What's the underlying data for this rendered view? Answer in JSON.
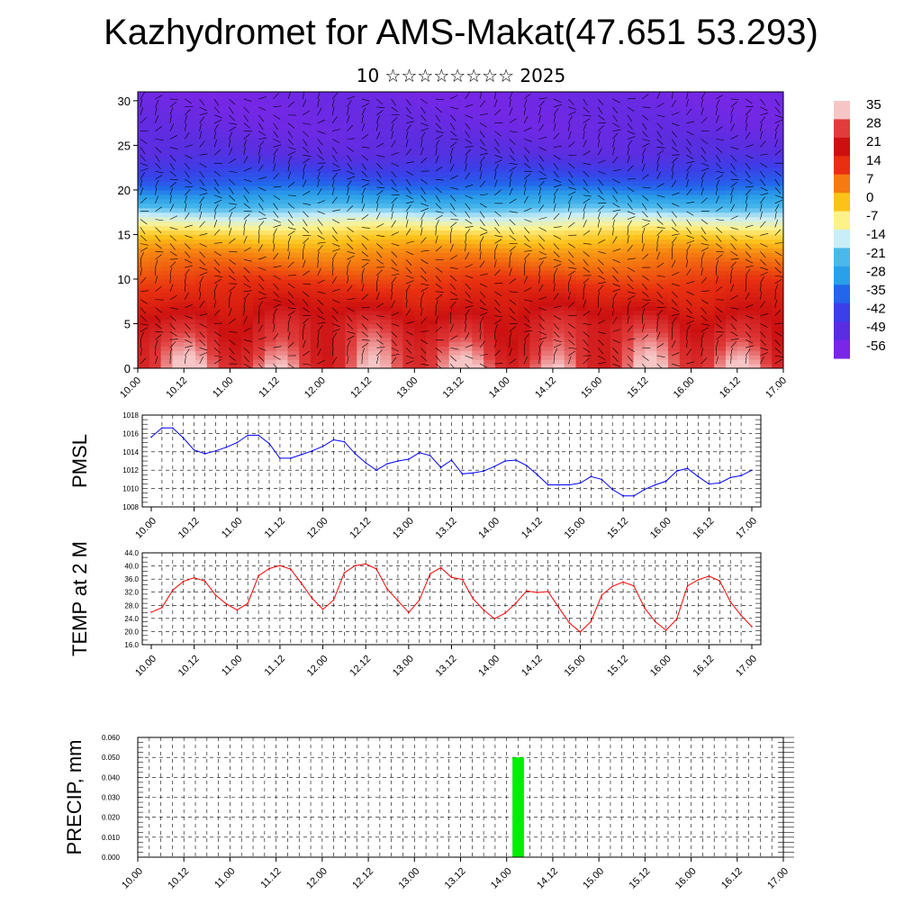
{
  "title": "Kazhydromet for AMS-Makat(47.651 53.293)",
  "subtitle": "10 ☆☆☆☆☆☆☆☆ 2025",
  "time_labels": [
    "10.00",
    "10.12",
    "11.00",
    "11.12",
    "12.00",
    "12.12",
    "13.00",
    "13.12",
    "14.00",
    "14.12",
    "15.00",
    "15.12",
    "16.00",
    "16.12",
    "17.00"
  ],
  "chart_data": [
    {
      "type": "heatmap",
      "name": "cross-section",
      "x_ticks": [
        "10.00",
        "10.12",
        "11.00",
        "11.12",
        "12.00",
        "12.12",
        "13.00",
        "13.12",
        "14.00",
        "14.12",
        "15.00",
        "15.12",
        "16.00",
        "16.12",
        "17.00"
      ],
      "y_ticks": [
        0,
        5,
        10,
        15,
        20,
        25,
        30
      ],
      "ylim": [
        0,
        31
      ],
      "colorbar": {
        "levels": [
          35,
          28,
          21,
          14,
          7,
          0,
          -7,
          -14,
          -21,
          -28,
          -35,
          -42,
          -49,
          -56
        ],
        "colors": [
          "#f6c6c6",
          "#e03c3c",
          "#cc1010",
          "#e83010",
          "#f57a10",
          "#fcc21a",
          "#fdf28a",
          "#c9eef8",
          "#4ab8ec",
          "#2aa0e8",
          "#2266ec",
          "#3b3fe8",
          "#5a2ee0",
          "#7a26e6"
        ]
      },
      "temperature_profile": [
        {
          "height": 0,
          "value": 33
        },
        {
          "height": 5,
          "value": 26
        },
        {
          "height": 10,
          "value": 14
        },
        {
          "height": 13,
          "value": 6
        },
        {
          "height": 15,
          "value": -2
        },
        {
          "height": 17,
          "value": -14
        },
        {
          "height": 19,
          "value": -28
        },
        {
          "height": 21,
          "value": -40
        },
        {
          "height": 24,
          "value": -52
        },
        {
          "height": 27,
          "value": -56
        },
        {
          "height": 31,
          "value": -58
        }
      ]
    },
    {
      "type": "line",
      "name": "PMSL",
      "ylabel": "PMSL",
      "ylim": [
        1008,
        1018
      ],
      "y_ticks": [
        "1008",
        "1010",
        "1012",
        "1014",
        "1016",
        "1018"
      ],
      "color": "#0000ff",
      "x": [
        "10.00",
        "10.03",
        "10.06",
        "10.09",
        "10.12",
        "10.15",
        "10.18",
        "10.21",
        "11.00",
        "11.03",
        "11.06",
        "11.09",
        "11.12",
        "11.15",
        "11.18",
        "11.21",
        "12.00",
        "12.03",
        "12.06",
        "12.09",
        "12.12",
        "12.15",
        "12.18",
        "12.21",
        "13.00",
        "13.03",
        "13.06",
        "13.09",
        "13.12",
        "13.15",
        "13.18",
        "13.21",
        "14.00",
        "14.03",
        "14.06",
        "14.09",
        "14.12",
        "14.15",
        "14.18",
        "14.21",
        "15.00",
        "15.03",
        "15.06",
        "15.09",
        "15.12",
        "15.15",
        "15.18",
        "15.21",
        "16.00",
        "16.03",
        "16.06",
        "16.09",
        "16.12",
        "16.15",
        "16.18",
        "16.21",
        "17.00"
      ],
      "values": [
        1015.6,
        1016.6,
        1016.6,
        1015.5,
        1014.2,
        1013.8,
        1014.1,
        1014.5,
        1015.0,
        1015.8,
        1015.8,
        1014.9,
        1013.3,
        1013.3,
        1013.7,
        1014.1,
        1014.6,
        1015.3,
        1015.1,
        1013.8,
        1012.8,
        1012.0,
        1012.7,
        1013.0,
        1013.2,
        1013.9,
        1013.6,
        1012.3,
        1013.1,
        1011.6,
        1011.7,
        1011.9,
        1012.4,
        1013.0,
        1013.1,
        1012.5,
        1011.5,
        1010.4,
        1010.4,
        1010.4,
        1010.6,
        1011.3,
        1011.0,
        1009.9,
        1009.2,
        1009.2,
        1009.9,
        1010.4,
        1010.8,
        1011.9,
        1012.2,
        1011.3,
        1010.5,
        1010.6,
        1011.2,
        1011.4,
        1012.0
      ]
    },
    {
      "type": "line",
      "name": "TEMP at 2 M",
      "ylabel": "TEMP at 2 M",
      "ylim": [
        16,
        44
      ],
      "y_ticks": [
        "16.0",
        "20.0",
        "24.0",
        "28.0",
        "32.0",
        "36.0",
        "40.0",
        "44.0"
      ],
      "color": "#ff0000",
      "x": [
        "10.00",
        "10.03",
        "10.06",
        "10.09",
        "10.12",
        "10.15",
        "10.18",
        "10.21",
        "11.00",
        "11.03",
        "11.06",
        "11.09",
        "11.12",
        "11.15",
        "11.18",
        "11.21",
        "12.00",
        "12.03",
        "12.06",
        "12.09",
        "12.12",
        "12.15",
        "12.18",
        "12.21",
        "13.00",
        "13.03",
        "13.06",
        "13.09",
        "13.12",
        "13.15",
        "13.18",
        "13.21",
        "14.00",
        "14.03",
        "14.06",
        "14.09",
        "14.12",
        "14.15",
        "14.18",
        "14.21",
        "15.00",
        "15.03",
        "15.06",
        "15.09",
        "15.12",
        "15.15",
        "15.18",
        "15.21",
        "16.00",
        "16.03",
        "16.06",
        "16.09",
        "16.12",
        "16.15",
        "16.18",
        "16.21",
        "17.00"
      ],
      "values": [
        25.9,
        27.3,
        32.6,
        35.3,
        36.4,
        35.4,
        31.1,
        28.4,
        26.6,
        28.6,
        37.0,
        39.2,
        40.1,
        39.0,
        34.7,
        30.1,
        26.8,
        29.6,
        37.9,
        40.1,
        40.6,
        39.1,
        33.0,
        29.4,
        25.8,
        29.6,
        37.6,
        39.5,
        36.5,
        35.9,
        30.0,
        26.6,
        23.9,
        25.6,
        28.7,
        32.4,
        31.9,
        32.2,
        27.3,
        22.6,
        19.9,
        23.0,
        31.1,
        33.8,
        35.1,
        33.9,
        27.2,
        23.0,
        20.4,
        23.8,
        33.9,
        35.8,
        36.9,
        35.5,
        29.1,
        24.9,
        21.5
      ]
    },
    {
      "type": "bar",
      "name": "PRECIP",
      "ylabel": "PRECIP, mm",
      "ylim": [
        0,
        0.06
      ],
      "y_ticks": [
        "0.000",
        "0.010",
        "0.020",
        "0.030",
        "0.040",
        "0.050",
        "0.060"
      ],
      "color": "#00ee00",
      "bars": [
        {
          "x": "14.03",
          "value": 0.05
        }
      ]
    }
  ]
}
